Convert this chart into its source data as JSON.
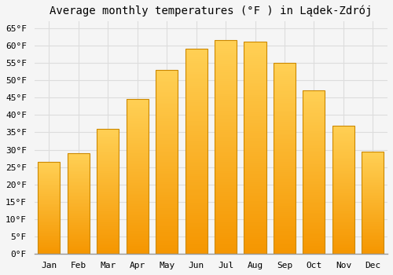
{
  "title": "Average monthly temperatures (°F ) in Lądek-Zdrój",
  "months": [
    "Jan",
    "Feb",
    "Mar",
    "Apr",
    "May",
    "Jun",
    "Jul",
    "Aug",
    "Sep",
    "Oct",
    "Nov",
    "Dec"
  ],
  "values": [
    26.6,
    29.0,
    36.0,
    44.5,
    53.0,
    59.0,
    61.5,
    61.0,
    55.0,
    47.0,
    37.0,
    29.5
  ],
  "bar_color_bottom": "#F5A623",
  "bar_color_top": "#FFD966",
  "bar_color_mid": "#FFBB33",
  "bar_edge_color": "#CC8800",
  "background_color": "#F5F5F5",
  "grid_color": "#DDDDDD",
  "ylim": [
    0,
    67
  ],
  "yticks": [
    0,
    5,
    10,
    15,
    20,
    25,
    30,
    35,
    40,
    45,
    50,
    55,
    60,
    65
  ],
  "title_fontsize": 10,
  "tick_fontsize": 8,
  "font_family": "monospace"
}
